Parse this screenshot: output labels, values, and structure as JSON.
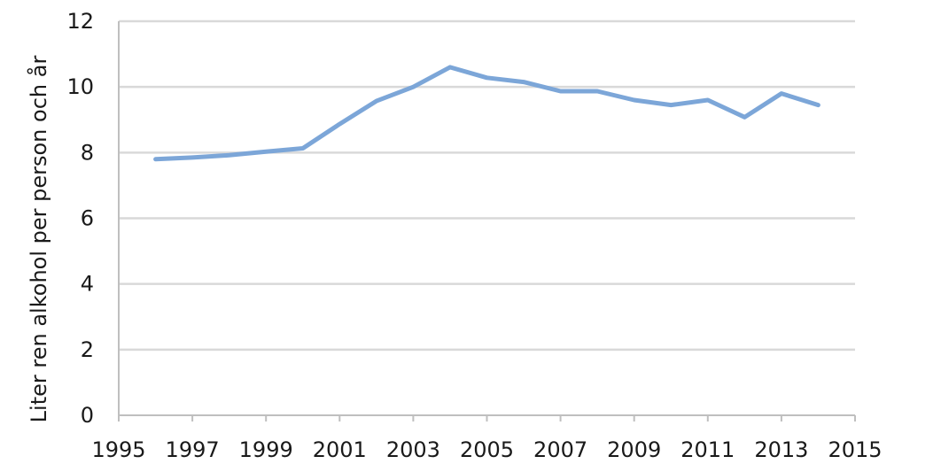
{
  "chart_data": {
    "type": "line",
    "ylabel": "Liter ren alkohol per person och år",
    "xlabel": "",
    "title": "",
    "ylim": [
      0,
      12
    ],
    "yticks": [
      0,
      2,
      4,
      6,
      8,
      10,
      12
    ],
    "xlim": [
      1995,
      2015
    ],
    "xticks": [
      1995,
      1997,
      1999,
      2001,
      2003,
      2005,
      2007,
      2009,
      2011,
      2013,
      2015
    ],
    "grid": true,
    "legend": "none",
    "series_color": "#7ca6d8",
    "x": [
      1996,
      1997,
      1998,
      1999,
      2000,
      2001,
      2002,
      2003,
      2004,
      2005,
      2006,
      2007,
      2008,
      2009,
      2010,
      2011,
      2012,
      2013,
      2014
    ],
    "y": [
      7.8,
      7.85,
      7.92,
      8.03,
      8.13,
      8.87,
      9.57,
      10.0,
      10.6,
      10.28,
      10.15,
      9.87,
      9.87,
      9.6,
      9.45,
      9.6,
      9.08,
      9.8,
      9.45
    ]
  }
}
